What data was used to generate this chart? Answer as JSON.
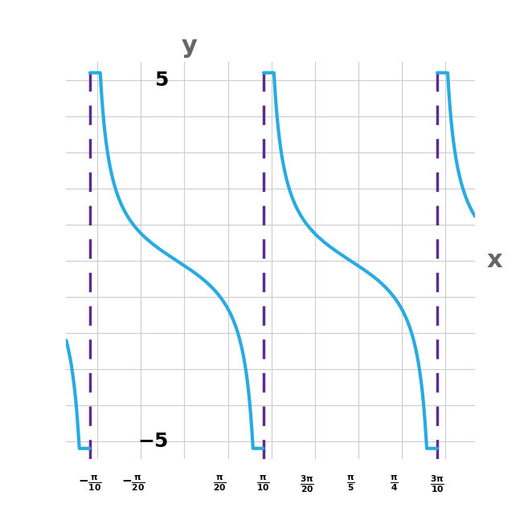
{
  "title": "",
  "ylabel": "y",
  "xlabel": "x",
  "ylim": [
    -5.5,
    5.5
  ],
  "xlim_left": -0.4,
  "xlim_right": 1.08,
  "asymptotes": [
    -0.3141592653589793,
    0.3141592653589793,
    0.9424777960769379
  ],
  "curve_color": "#29ABE2",
  "asymptote_color": "#5B2D8E",
  "axis_color": "#000000",
  "grid_color": "#cccccc",
  "curve_lw": 3.0,
  "asymptote_lw": 2.5,
  "x_tick_labels": [
    [
      "-\\frac{\\pi}{10}",
      -0.3141592653589793
    ],
    [
      "-\\frac{\\pi}{20}",
      -0.15707963267948966
    ],
    [
      "\\frac{\\pi}{20}",
      0.15707963267948966
    ],
    [
      "\\frac{\\pi}{10}",
      0.3141592653589793
    ],
    [
      "\\frac{3\\pi}{20}",
      0.47123889803846897
    ],
    [
      "\\frac{\\pi}{5}",
      0.6283185307179586
    ],
    [
      "\\frac{\\pi}{4}",
      0.7853981633974483
    ],
    [
      "\\frac{3\\pi}{10}",
      0.9424777960769379
    ]
  ],
  "period": 0.6283185307179586,
  "figsize": [
    6.57,
    6.43
  ],
  "dpi": 100
}
